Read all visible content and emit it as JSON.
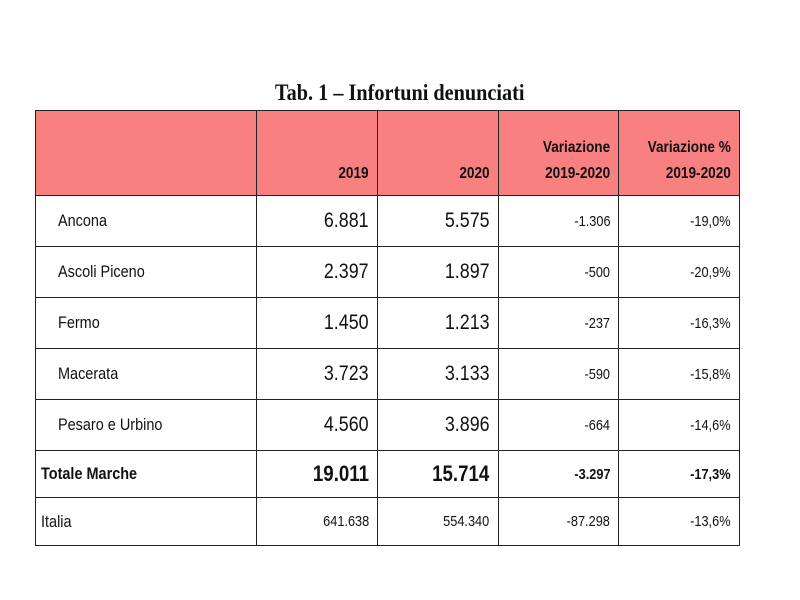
{
  "title": "Tab. 1 – Infortuni denunciati",
  "table": {
    "headers": [
      "",
      "2019",
      "2020",
      "Variazione\n2019-2020",
      "Variazione %\n2019-2020"
    ],
    "rows": [
      {
        "name": "Ancona",
        "v2019": "6.881",
        "v2020": "5.575",
        "var": "-1.306",
        "varp": "-19,0%"
      },
      {
        "name": "Ascoli Piceno",
        "v2019": "2.397",
        "v2020": "1.897",
        "var": "-500",
        "varp": "-20,9%"
      },
      {
        "name": "Fermo",
        "v2019": "1.450",
        "v2020": "1.213",
        "var": "-237",
        "varp": "-16,3%"
      },
      {
        "name": "Macerata",
        "v2019": "3.723",
        "v2020": "3.133",
        "var": "-590",
        "varp": "-15,8%"
      },
      {
        "name": "Pesaro e Urbino",
        "v2019": "4.560",
        "v2020": "3.896",
        "var": "-664",
        "varp": "-14,6%"
      }
    ],
    "total": {
      "name": "Totale Marche",
      "v2019": "19.011",
      "v2020": "15.714",
      "var": "-3.297",
      "varp": "-17,3%"
    },
    "italia": {
      "name": "Italia",
      "v2019": "641.638",
      "v2020": "554.340",
      "var": "-87.298",
      "varp": "-13,6%"
    }
  },
  "colors": {
    "header_bg": "#f98080"
  }
}
